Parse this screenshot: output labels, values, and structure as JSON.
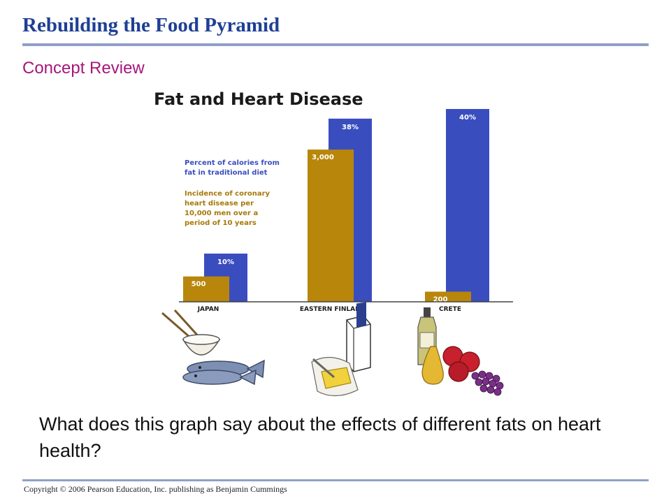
{
  "slide": {
    "title": "Rebuilding the Food Pyramid",
    "subtitle": "Concept Review",
    "question": "What does this graph say about the effects of different fats on heart health?",
    "copyright": "Copyright © 2006 Pearson Education, Inc. publishing as Benjamin Cummings"
  },
  "chart_data": {
    "type": "bar",
    "title": "Fat and Heart Disease",
    "categories": [
      "JAPAN",
      "EASTERN FINLAND",
      "CRETE"
    ],
    "series": [
      {
        "name": "Percent of calories from fat in traditional diet",
        "values": [
          10,
          38,
          40
        ],
        "labels": [
          "10%",
          "38%",
          "40%"
        ],
        "color": "#3a4dbf"
      },
      {
        "name": "Incidence of coronary heart disease per 10,000 men over a period of 10 years",
        "values": [
          500,
          3000,
          200
        ],
        "labels": [
          "500",
          "3,000",
          "200"
        ],
        "color": "#b8860b"
      }
    ],
    "ylim_percent": [
      0,
      40
    ],
    "ylim_incidence": [
      0,
      3800
    ],
    "legend_position": "top-left",
    "grid": false,
    "colors": {
      "blue_bar": "#3a4dbf",
      "gold_bar": "#b8860b",
      "legend_text": "#3a4dbf",
      "gold_text": "#a6790a"
    }
  },
  "illustrations": [
    "rice-bowl-with-chopsticks",
    "fish",
    "milk-carton",
    "butter",
    "olive-oil-bottle",
    "pear",
    "apples",
    "grapes"
  ],
  "colors": {
    "title": "#1f3f95",
    "subtitle": "#a5177a",
    "rule": "#8fa0c8"
  }
}
